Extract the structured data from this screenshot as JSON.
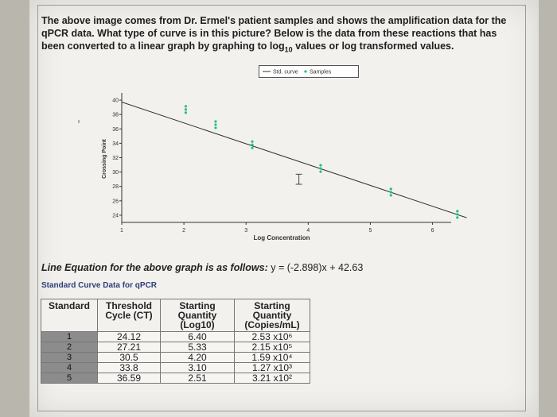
{
  "question": {
    "line1": "The above image comes from Dr. Ermel's patient samples and shows the amplification data for the",
    "line2": "qPCR data. What type of curve is in this picture? Below is the data from these reactions that has",
    "line3_a": "been converted to a linear graph by graphing to log",
    "line3_sub": "10",
    "line3_b": " values or log transformed values."
  },
  "chart_data": {
    "type": "scatter",
    "xlabel": "Log Concentration",
    "ylabel": "Crossing Point",
    "xticks": [
      "1",
      "2",
      "3",
      "4",
      "5",
      "6"
    ],
    "yticks": [
      "40",
      "38",
      "36",
      "34",
      "32",
      "30",
      "28",
      "26",
      "24"
    ],
    "xlim": [
      1,
      6.3
    ],
    "ylim": [
      23,
      41
    ],
    "legend": {
      "position": "top-right",
      "line_label": "Std. curve",
      "point_label": "Samples"
    },
    "line": {
      "slope": -2.898,
      "intercept": 42.63
    },
    "series": [
      {
        "name": "Samples",
        "points": [
          [
            2.03,
            38.7
          ],
          [
            2.51,
            36.59
          ],
          [
            3.1,
            33.8
          ],
          [
            4.2,
            30.5
          ],
          [
            5.33,
            27.21
          ],
          [
            6.4,
            24.12
          ]
        ]
      }
    ],
    "error_bar": {
      "x": 3.85,
      "y": 29.0,
      "low": 28.3,
      "high": 29.7
    },
    "colors": {
      "points": "#22c07a",
      "line": "#333333"
    }
  },
  "equation": {
    "lead": "Line Equation for the above graph is as follows:",
    "formula": " y = (-2.898)x + 42.63"
  },
  "table": {
    "title": "Standard Curve Data for qPCR",
    "headers": {
      "standard": "Standard",
      "threshold": [
        "Threshold",
        "Cycle (CT)"
      ],
      "log_qty": [
        "Starting",
        "Quantity",
        "(Log10)"
      ],
      "copies_qty": [
        "Starting",
        "Quantity",
        "(Copies/mL)"
      ]
    },
    "rows": [
      {
        "standard": "1",
        "ct": "24.12",
        "log": "6.40",
        "copies": "2.53 x10⁶"
      },
      {
        "standard": "2",
        "ct": "27.21",
        "log": "5.33",
        "copies": "2.15 x10⁵"
      },
      {
        "standard": "3",
        "ct": "30.5",
        "log": "4.20",
        "copies": "1.59 x10⁴"
      },
      {
        "standard": "4",
        "ct": "33.8",
        "log": "3.10",
        "copies": "1.27 x10³"
      },
      {
        "standard": "5",
        "ct": "36.59",
        "log": "2.51",
        "copies": "3.21 x10²"
      }
    ]
  }
}
